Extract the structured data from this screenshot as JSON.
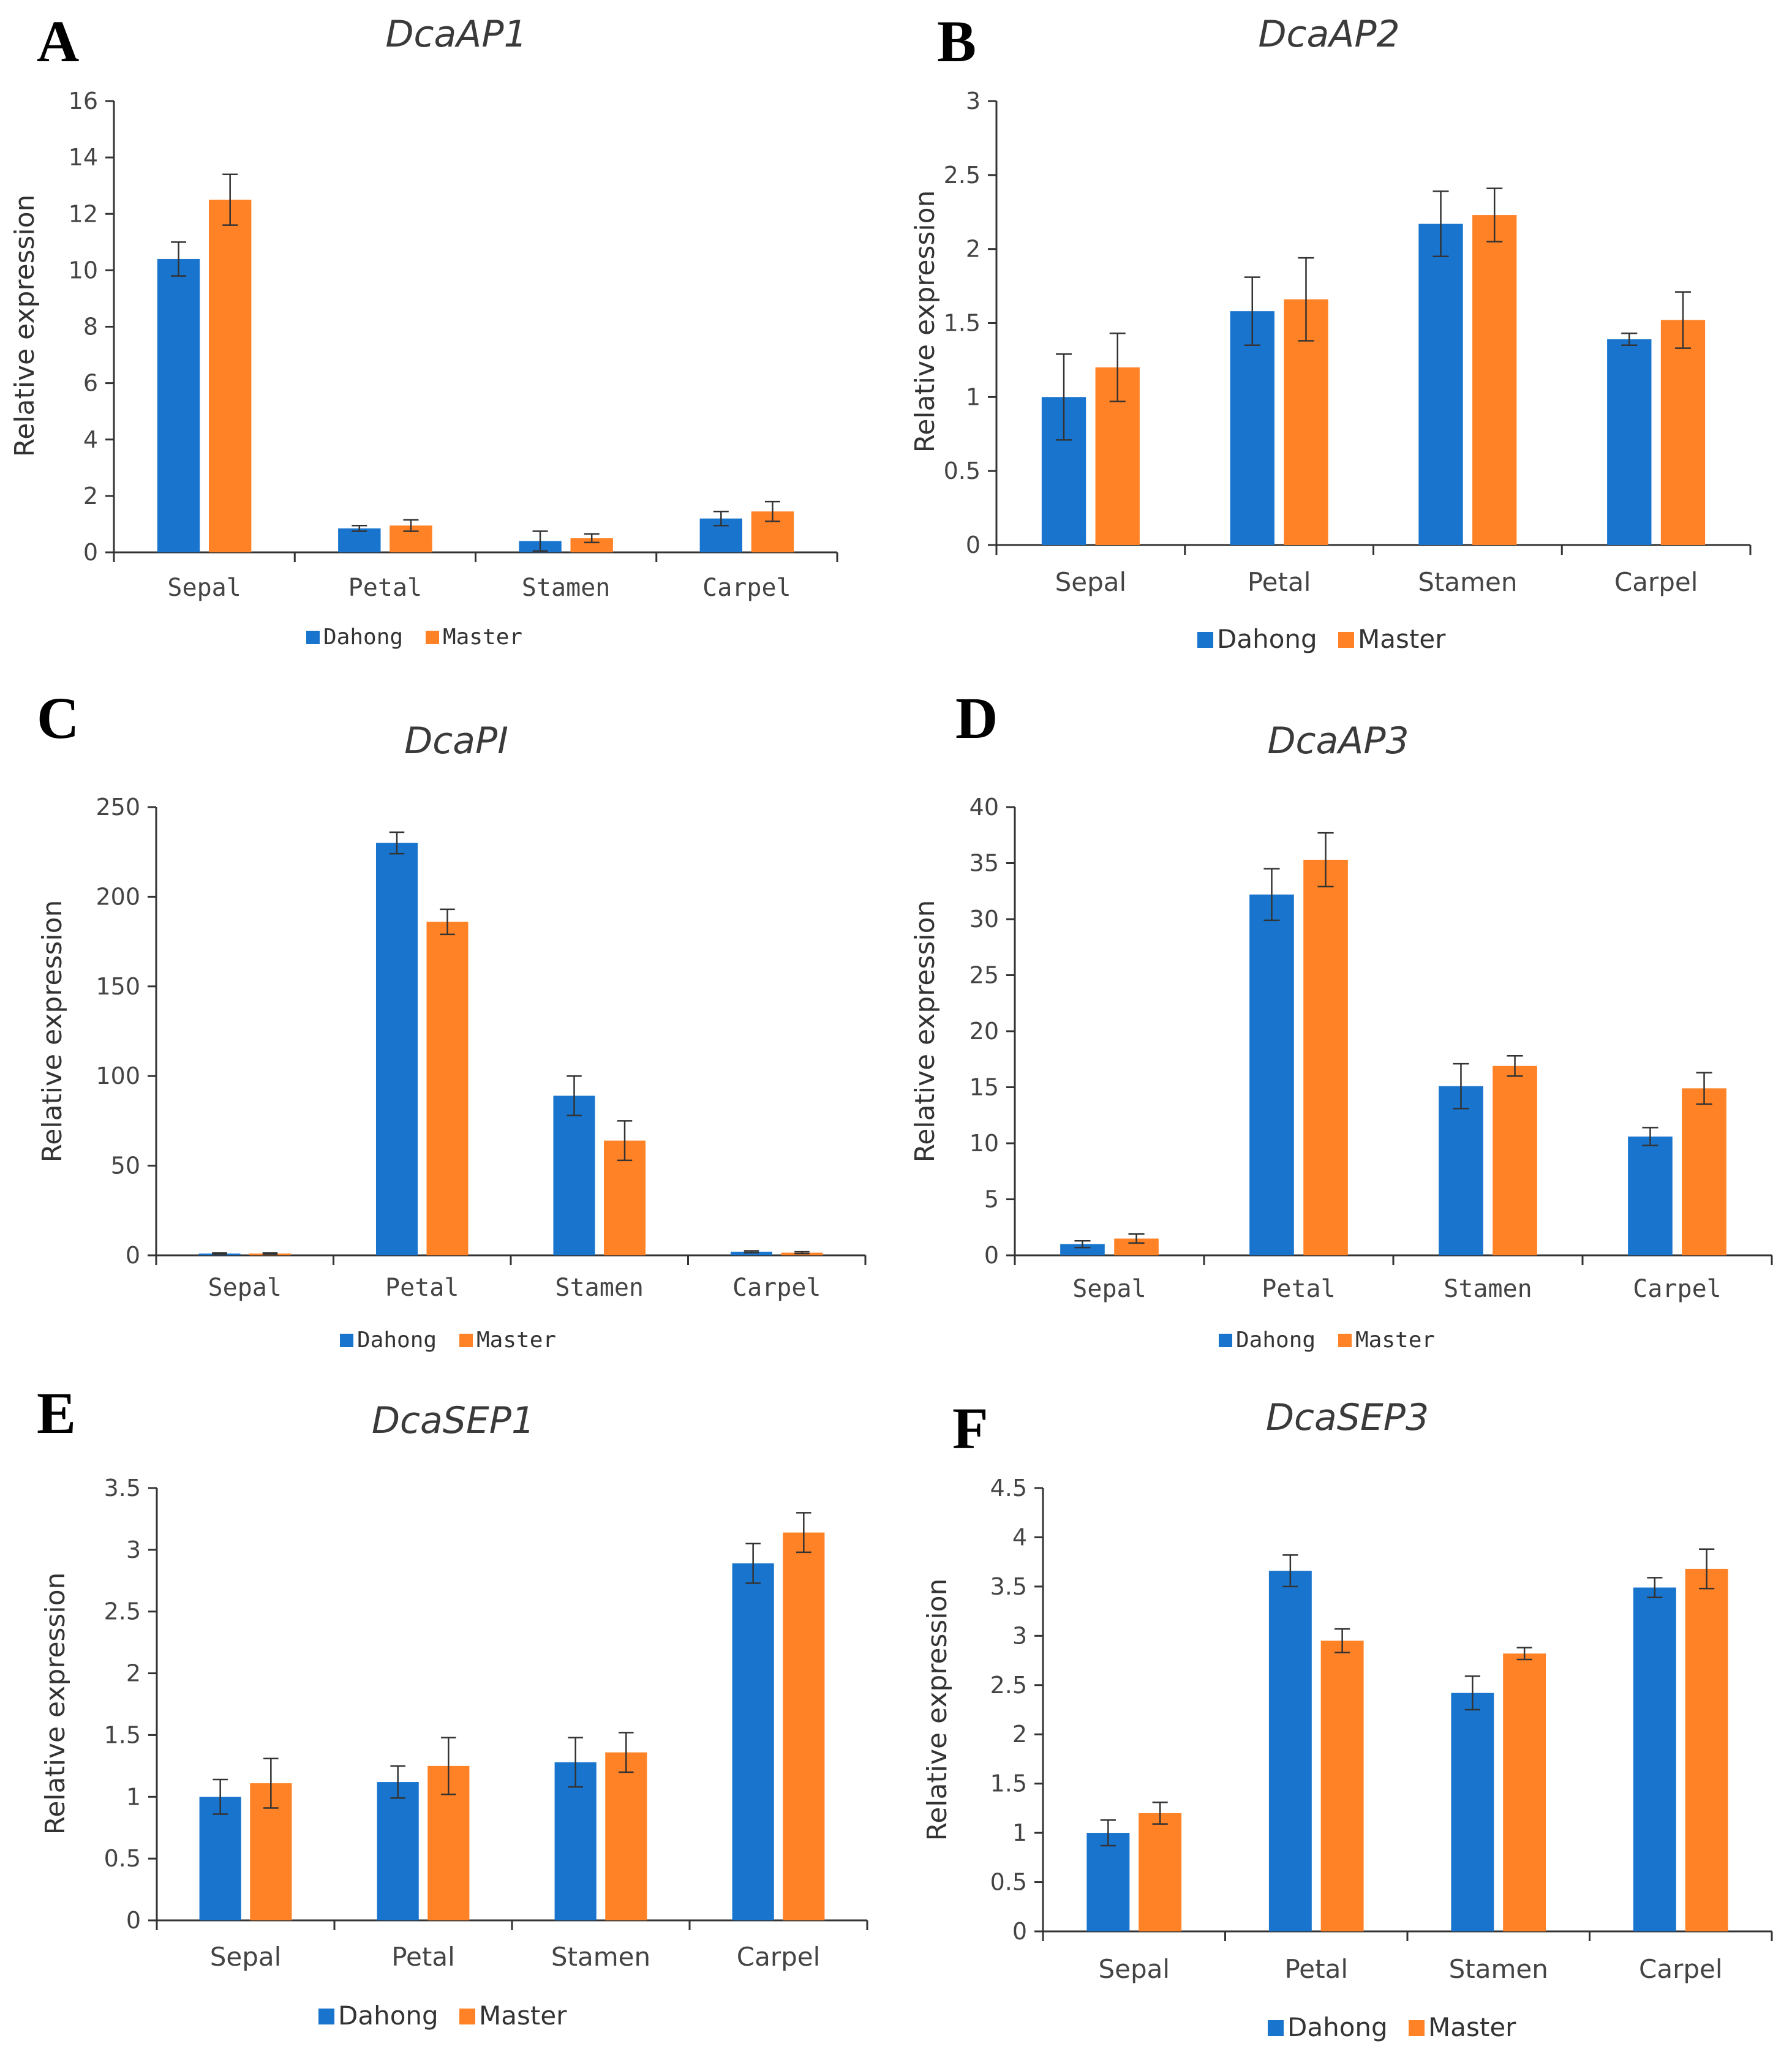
{
  "figure": {
    "series_names": [
      "Dahong",
      "Master"
    ]
  },
  "colors": {
    "Dahong": "#1874CD",
    "Master": "#FF8226"
  },
  "chart_data": [
    {
      "panel": "A",
      "title": "DcaAP1",
      "type": "bar",
      "categories": [
        "Sepal",
        "Petal",
        "Stamen",
        "Carpel"
      ],
      "ylabel": "Relative expression",
      "ylim": [
        0,
        16
      ],
      "yticks": [
        "0",
        "2",
        "4",
        "6",
        "8",
        "10",
        "12",
        "14",
        "16"
      ],
      "legend": [
        "Dahong",
        "Master"
      ],
      "series": [
        {
          "name": "Dahong",
          "values": [
            10.4,
            0.85,
            0.4,
            1.2
          ],
          "errors": [
            0.6,
            0.1,
            0.35,
            0.25
          ]
        },
        {
          "name": "Master",
          "values": [
            12.5,
            0.95,
            0.5,
            1.45
          ],
          "errors": [
            0.9,
            0.2,
            0.15,
            0.35
          ]
        }
      ]
    },
    {
      "panel": "B",
      "title": "DcaAP2",
      "type": "bar",
      "categories": [
        "Sepal",
        "Petal",
        "Stamen",
        "Carpel"
      ],
      "ylabel": "Relative expression",
      "ylim": [
        0,
        3
      ],
      "yticks": [
        "0",
        "0.5",
        "1",
        "1.5",
        "2",
        "2.5",
        "3"
      ],
      "legend": [
        "Dahong",
        "Master"
      ],
      "series": [
        {
          "name": "Dahong",
          "values": [
            1.0,
            1.58,
            2.17,
            1.39
          ],
          "errors": [
            0.29,
            0.23,
            0.22,
            0.04
          ]
        },
        {
          "name": "Master",
          "values": [
            1.2,
            1.66,
            2.23,
            1.52
          ],
          "errors": [
            0.23,
            0.28,
            0.18,
            0.19
          ]
        }
      ]
    },
    {
      "panel": "C",
      "title": "DcaPI",
      "type": "bar",
      "categories": [
        "Sepal",
        "Petal",
        "Stamen",
        "Carpel"
      ],
      "ylabel": "Relative expression",
      "ylim": [
        0,
        250
      ],
      "yticks": [
        "0",
        "50",
        "100",
        "150",
        "200",
        "250"
      ],
      "legend": [
        "Dahong",
        "Master"
      ],
      "series": [
        {
          "name": "Dahong",
          "values": [
            1,
            230,
            89,
            2
          ],
          "errors": [
            0.3,
            6,
            11,
            0.5
          ]
        },
        {
          "name": "Master",
          "values": [
            1,
            186,
            64,
            1.5
          ],
          "errors": [
            0.3,
            7,
            11,
            0.5
          ]
        }
      ]
    },
    {
      "panel": "D",
      "title": "DcaAP3",
      "type": "bar",
      "categories": [
        "Sepal",
        "Petal",
        "Stamen",
        "Carpel"
      ],
      "ylabel": "Relative expression",
      "ylim": [
        0,
        40
      ],
      "yticks": [
        "0",
        "5",
        "10",
        "15",
        "20",
        "25",
        "30",
        "35",
        "40"
      ],
      "legend": [
        "Dahong",
        "Master"
      ],
      "series": [
        {
          "name": "Dahong",
          "values": [
            1.0,
            32.2,
            15.1,
            10.6
          ],
          "errors": [
            0.3,
            2.3,
            2.0,
            0.8
          ]
        },
        {
          "name": "Master",
          "values": [
            1.5,
            35.3,
            16.9,
            14.9
          ],
          "errors": [
            0.4,
            2.4,
            0.9,
            1.4
          ]
        }
      ]
    },
    {
      "panel": "E",
      "title": "DcaSEP1",
      "type": "bar",
      "categories": [
        "Sepal",
        "Petal",
        "Stamen",
        "Carpel"
      ],
      "ylabel": "Relative expression",
      "ylim": [
        0,
        3.5
      ],
      "yticks": [
        "0",
        "0.5",
        "1",
        "1.5",
        "2",
        "2.5",
        "3",
        "3.5"
      ],
      "legend": [
        "Dahong",
        "Master"
      ],
      "series": [
        {
          "name": "Dahong",
          "values": [
            1.0,
            1.12,
            1.28,
            2.89
          ],
          "errors": [
            0.14,
            0.13,
            0.2,
            0.16
          ]
        },
        {
          "name": "Master",
          "values": [
            1.11,
            1.25,
            1.36,
            3.14
          ],
          "errors": [
            0.2,
            0.23,
            0.16,
            0.16
          ]
        }
      ]
    },
    {
      "panel": "F",
      "title": "DcaSEP3",
      "type": "bar",
      "categories": [
        "Sepal",
        "Petal",
        "Stamen",
        "Carpel"
      ],
      "ylabel": "Relative expression",
      "ylim": [
        0,
        4.5
      ],
      "yticks": [
        "0",
        "0.5",
        "1",
        "1.5",
        "2",
        "2.5",
        "3",
        "3.5",
        "4",
        "4.5"
      ],
      "legend": [
        "Dahong",
        "Master"
      ],
      "series": [
        {
          "name": "Dahong",
          "values": [
            1.0,
            3.66,
            2.42,
            3.49
          ],
          "errors": [
            0.13,
            0.16,
            0.17,
            0.1
          ]
        },
        {
          "name": "Master",
          "values": [
            1.2,
            2.95,
            2.82,
            3.68
          ],
          "errors": [
            0.11,
            0.12,
            0.06,
            0.2
          ]
        }
      ]
    }
  ]
}
